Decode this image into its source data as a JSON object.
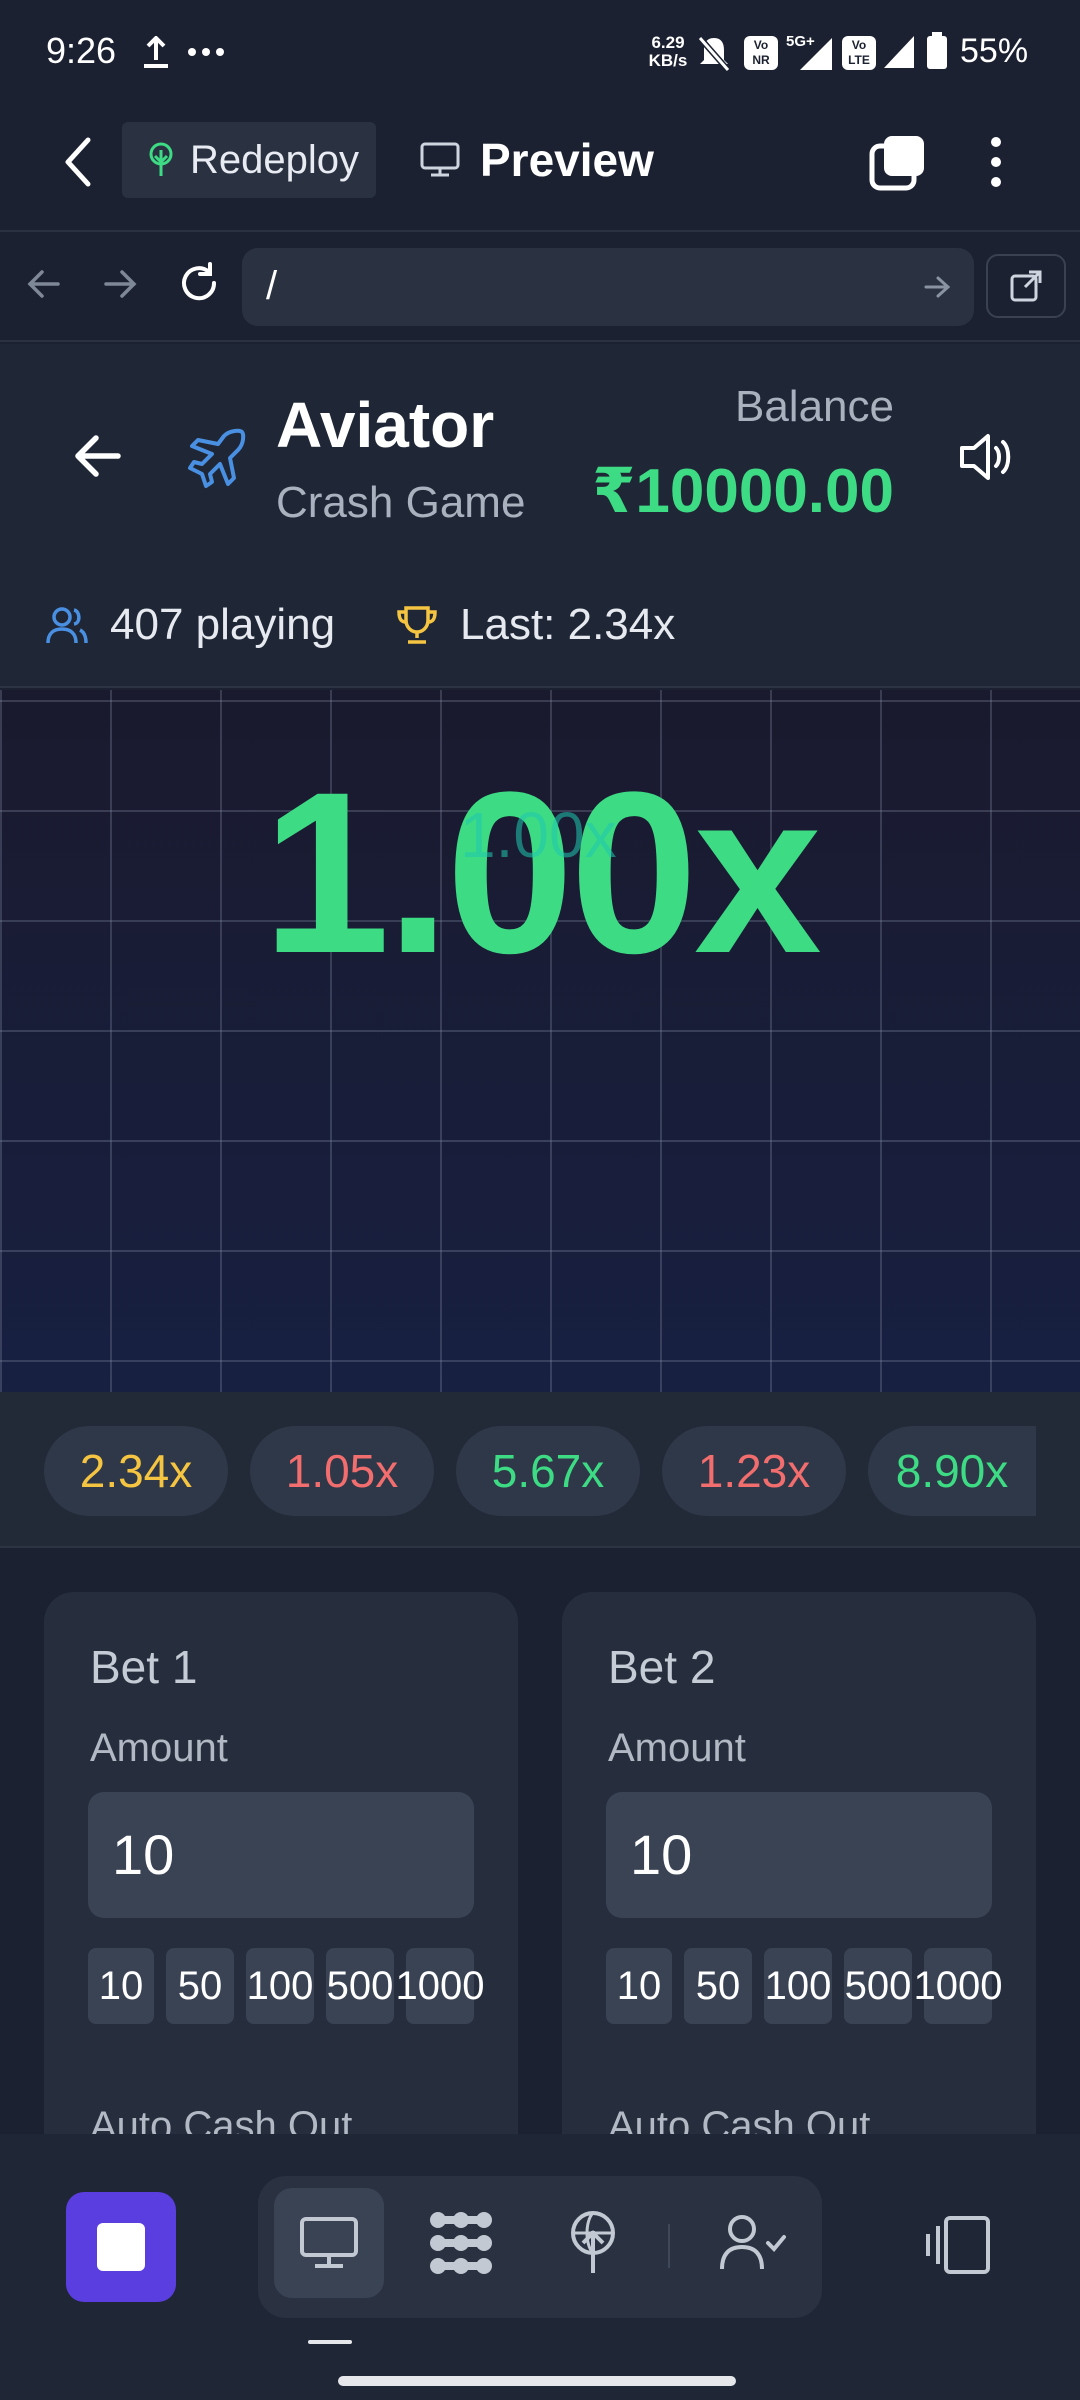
{
  "status_bar": {
    "time": "9:26",
    "net_speed_top": "6.29",
    "net_speed_bottom": "KB/s",
    "battery": "55%"
  },
  "toolbar": {
    "redeploy_label": "Redeploy",
    "preview_label": "Preview"
  },
  "url_bar": {
    "value": "/"
  },
  "game": {
    "title": "Aviator",
    "subtitle": "Crash Game",
    "balance_label": "Balance",
    "balance_value": "₹10000.00",
    "players": "407 playing",
    "last": "Last: 2.34x",
    "multiplier": "1.00x",
    "multiplier_ghost": "1.00x"
  },
  "history": [
    {
      "value": "2.34x",
      "color": "#f5c542"
    },
    {
      "value": "1.05x",
      "color": "#f26d6d"
    },
    {
      "value": "5.67x",
      "color": "#3ddc84"
    },
    {
      "value": "1.23x",
      "color": "#f26d6d"
    },
    {
      "value": "8.90x",
      "color": "#3ddc84"
    }
  ],
  "bets": [
    {
      "title": "Bet 1",
      "amount_label": "Amount",
      "amount_value": "10",
      "quick_amounts": [
        "10",
        "50",
        "100",
        "500",
        "1000"
      ],
      "auto_cashout_label": "Auto Cash Out"
    },
    {
      "title": "Bet 2",
      "amount_label": "Amount",
      "amount_value": "10",
      "quick_amounts": [
        "10",
        "50",
        "100",
        "500",
        "1000"
      ],
      "auto_cashout_label": "Auto Cash Out"
    }
  ],
  "colors": {
    "accent_green": "#3ddc84",
    "accent_purple": "#5b3ee0",
    "background": "#1b2130"
  }
}
